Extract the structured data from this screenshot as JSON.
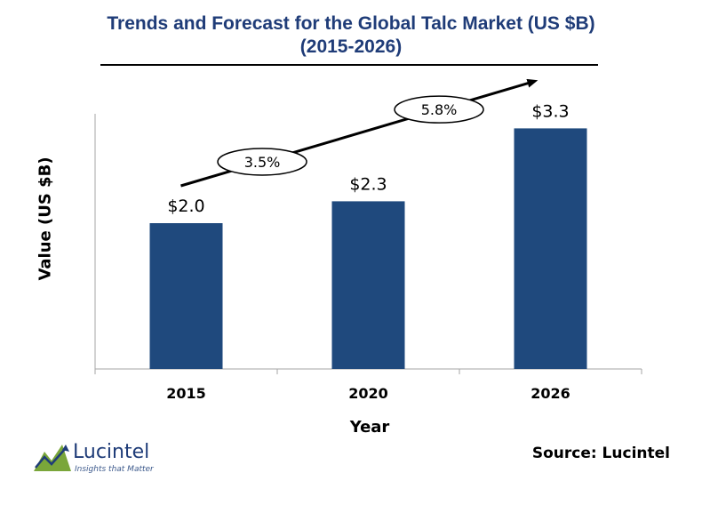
{
  "title": {
    "line1": "Trends and Forecast for the Global Talc Market (US $B)",
    "line2": "(2015-2026)"
  },
  "chart_data": {
    "type": "bar",
    "title": "Trends and Forecast for the Global Talc Market (US $B) (2015-2026)",
    "xlabel": "Year",
    "ylabel": "Value (US $B)",
    "categories": [
      "2015",
      "2020",
      "2026"
    ],
    "values": [
      2.0,
      2.3,
      3.3
    ],
    "data_labels": [
      "$2.0",
      "$2.3",
      "$3.3"
    ],
    "ylim": [
      0,
      3.5
    ],
    "bar_color": "#1f497d",
    "grid": false,
    "annotations": [
      {
        "label": "3.5%",
        "from": "2015",
        "to": "2020"
      },
      {
        "label": "5.8%",
        "from": "2020",
        "to": "2026"
      }
    ]
  },
  "footer": {
    "logo_name": "Lucintel",
    "logo_tagline": "Insights that Matter",
    "source": "Source: Lucintel"
  },
  "colors": {
    "title": "#1f3c78",
    "bar": "#1f497d",
    "logo_green": "#7aa63a"
  }
}
